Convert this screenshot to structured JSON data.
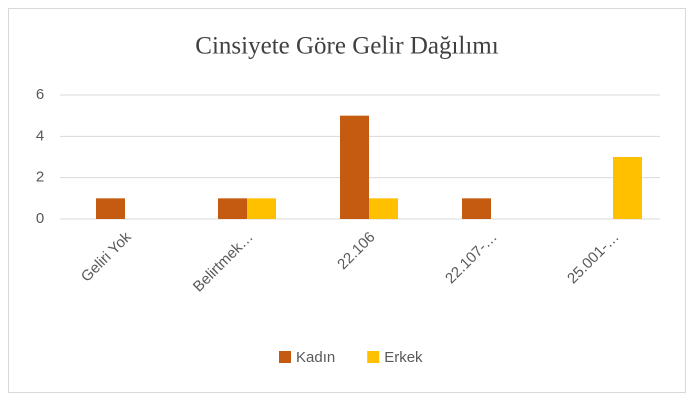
{
  "chart_data": {
    "type": "bar",
    "title": "Cinsiyete Göre Gelir Dağılımı",
    "categories": [
      "Geliri Yok",
      "Belirtmek…",
      "22.106",
      "22.107-…",
      "25.001-…"
    ],
    "series": [
      {
        "name": "Kadın",
        "color": "#c55a11",
        "values": [
          1,
          1,
          5,
          1,
          0
        ]
      },
      {
        "name": "Erkek",
        "color": "#ffc000",
        "values": [
          0,
          1,
          1,
          0,
          3
        ]
      }
    ],
    "ylim": [
      0,
      6
    ],
    "yticks": [
      0,
      2,
      4,
      6
    ],
    "grid": true,
    "legend": "bottom"
  }
}
